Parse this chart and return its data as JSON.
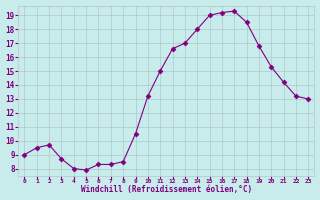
{
  "x": [
    0,
    1,
    2,
    3,
    4,
    5,
    6,
    7,
    8,
    9,
    10,
    11,
    12,
    13,
    14,
    15,
    16,
    17,
    18,
    19,
    20,
    21,
    22,
    23
  ],
  "y": [
    9.0,
    9.5,
    9.7,
    8.7,
    8.0,
    7.9,
    8.3,
    8.3,
    8.5,
    10.5,
    13.2,
    15.0,
    16.6,
    17.0,
    18.0,
    19.0,
    19.2,
    19.3,
    18.5,
    16.8,
    15.3,
    14.2,
    13.2,
    13.0
  ],
  "line_color": "#800080",
  "marker": "D",
  "marker_size": 2.5,
  "bg_color": "#c8ecec",
  "grid_color": "#b0c8c8",
  "xlabel": "Windchill (Refroidissement éolien,°C)",
  "xlabel_color": "#800080",
  "tick_color": "#800080",
  "ylim": [
    7.5,
    19.7
  ],
  "xlim": [
    -0.5,
    23.5
  ],
  "yticks": [
    8,
    9,
    10,
    11,
    12,
    13,
    14,
    15,
    16,
    17,
    18,
    19
  ],
  "xticks": [
    0,
    1,
    2,
    3,
    4,
    5,
    6,
    7,
    8,
    9,
    10,
    11,
    12,
    13,
    14,
    15,
    16,
    17,
    18,
    19,
    20,
    21,
    22,
    23
  ],
  "xtick_labels": [
    "0",
    "1",
    "2",
    "3",
    "4",
    "5",
    "6",
    "7",
    "8",
    "9",
    "10",
    "11",
    "12",
    "13",
    "14",
    "15",
    "16",
    "17",
    "18",
    "19",
    "20",
    "21",
    "22",
    "23"
  ]
}
